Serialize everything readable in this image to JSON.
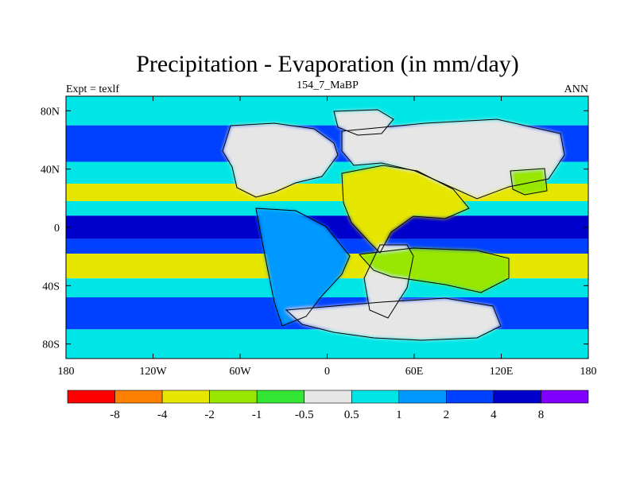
{
  "chart_data": {
    "type": "heatmap",
    "title": "Precipitation - Evaporation (in mm/day)",
    "subtitle_left": "Expt = texlf",
    "subtitle_center": "154_7_MaBP",
    "subtitle_right": "ANN",
    "x_ticks": [
      {
        "value": -180,
        "label": "180"
      },
      {
        "value": -120,
        "label": "120W"
      },
      {
        "value": -60,
        "label": "60W"
      },
      {
        "value": 0,
        "label": "0"
      },
      {
        "value": 60,
        "label": "60E"
      },
      {
        "value": 120,
        "label": "120E"
      },
      {
        "value": 180,
        "label": "180"
      }
    ],
    "y_ticks": [
      {
        "value": 80,
        "label": "80N"
      },
      {
        "value": 40,
        "label": "40N"
      },
      {
        "value": 0,
        "label": "0"
      },
      {
        "value": -40,
        "label": "40S"
      },
      {
        "value": -80,
        "label": "80S"
      }
    ],
    "xlim": [
      -180,
      180
    ],
    "ylim": [
      -90,
      90
    ],
    "colorbar": {
      "colors": [
        "#ff0000",
        "#ff7f00",
        "#e6e600",
        "#99e600",
        "#33e633",
        "#e6e6e6",
        "#00e6e6",
        "#0099ff",
        "#0040ff",
        "#0000cc",
        "#8000ff"
      ],
      "labels": [
        "-8",
        "-4",
        "-2",
        "-1",
        "-0.5",
        "0.5",
        "1",
        "2",
        "4",
        "8"
      ]
    },
    "fields": {
      "zonal_band_values": [
        {
          "lat_range": [
            70,
            90
          ],
          "value": 0.7
        },
        {
          "lat_range": [
            45,
            70
          ],
          "value": 3
        },
        {
          "lat_range": [
            30,
            45
          ],
          "value": 0.7
        },
        {
          "lat_range": [
            18,
            30
          ],
          "value": -2.5
        },
        {
          "lat_range": [
            8,
            18
          ],
          "value": 0.8
        },
        {
          "lat_range": [
            -8,
            8
          ],
          "value": 5
        },
        {
          "lat_range": [
            -18,
            -8
          ],
          "value": 3
        },
        {
          "lat_range": [
            -35,
            -18
          ],
          "value": -4
        },
        {
          "lat_range": [
            -48,
            -35
          ],
          "value": 0.8
        },
        {
          "lat_range": [
            -70,
            -48
          ],
          "value": 2.5
        },
        {
          "lat_range": [
            -90,
            -70
          ],
          "value": 0.7
        }
      ],
      "land_regions": [
        {
          "name": "north_america",
          "value": 0.2
        },
        {
          "name": "south_america",
          "value": 1.5
        },
        {
          "name": "eurasia",
          "value": 0.2
        },
        {
          "name": "africa_arabia",
          "value": -2.2
        },
        {
          "name": "australia_india",
          "value": -1.5
        },
        {
          "name": "antarctica",
          "value": 0.2
        }
      ]
    }
  }
}
